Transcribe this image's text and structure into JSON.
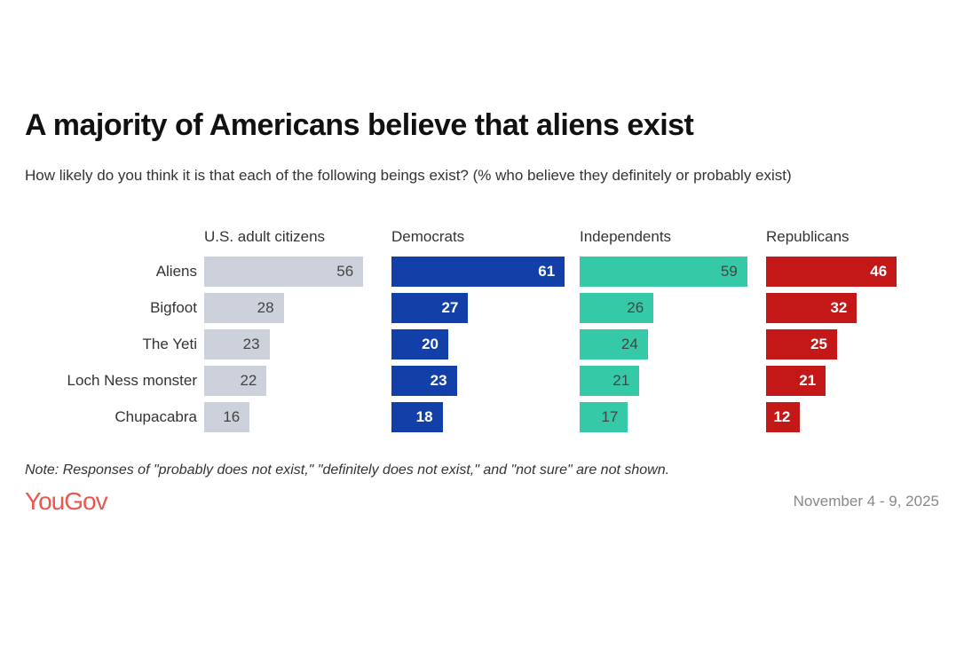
{
  "chart_data": {
    "type": "bar",
    "title": "A majority of Americans believe that aliens exist",
    "subtitle": "How likely do you think it is that each of the following beings exist? (% who believe they definitely or probably exist)",
    "categories": [
      "Aliens",
      "Bigfoot",
      "The Yeti",
      "Loch Ness monster",
      "Chupacabra"
    ],
    "series": [
      {
        "name": "U.S. adult citizens",
        "color": "#cdd1dc",
        "label_color": "#444444",
        "values": [
          56,
          28,
          23,
          22,
          16
        ]
      },
      {
        "name": "Democrats",
        "color": "#1240a8",
        "label_color": "#ffffff",
        "values": [
          61,
          27,
          20,
          23,
          18
        ]
      },
      {
        "name": "Independents",
        "color": "#36c9a7",
        "label_color": "#444444",
        "values": [
          59,
          26,
          24,
          21,
          17
        ]
      },
      {
        "name": "Republicans",
        "color": "#c41818",
        "label_color": "#ffffff",
        "values": [
          46,
          32,
          25,
          21,
          12
        ]
      }
    ],
    "orientation": "horizontal",
    "grid": false
  },
  "footer": {
    "note": "Note: Responses of \"probably does not exist,\" \"definitely does not exist,\" and \"not sure\" are not shown.",
    "logo": "YouGov",
    "date": "November 4 - 9, 2025"
  }
}
